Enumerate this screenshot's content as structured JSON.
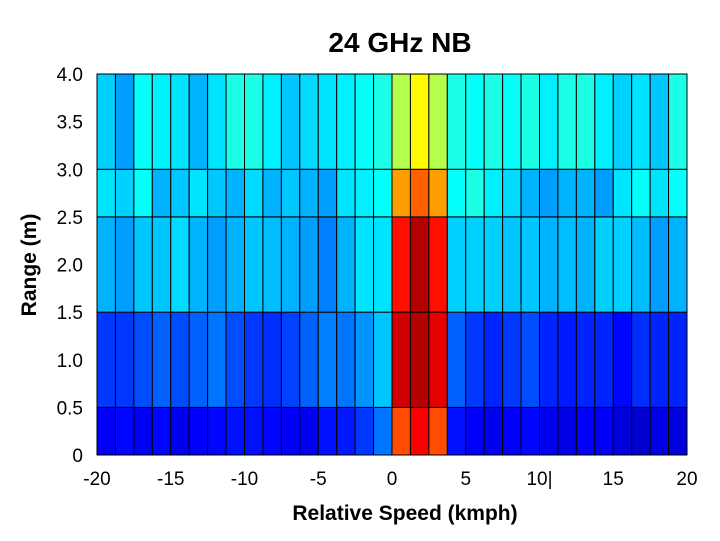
{
  "chart_data": {
    "type": "heatmap",
    "title": "24 GHz NB",
    "xlabel": "Relative Speed (kmph)",
    "ylabel": "Range (m)",
    "xlim": [
      -20,
      20
    ],
    "ylim": [
      0,
      4.0
    ],
    "x_ticks": [
      -20,
      -15,
      -10,
      -5,
      0,
      5,
      10,
      15,
      20
    ],
    "x_tick_labels": [
      "-20",
      "-15",
      "-10",
      "-5",
      "0",
      "5",
      "10|",
      "15",
      "20"
    ],
    "y_ticks": [
      0,
      0.5,
      1.0,
      1.5,
      2.0,
      2.5,
      3.0,
      3.5,
      4.0
    ],
    "y_tick_labels": [
      "0",
      "0.5",
      "1.0",
      "1.5",
      "2.0",
      "2.5",
      "3.0",
      "3.5",
      "4.0"
    ],
    "x_edges": [
      -20,
      -18.75,
      -17.5,
      -16.25,
      -15,
      -13.75,
      -12.5,
      -11.25,
      -10,
      -8.75,
      -7.5,
      -6.25,
      -5,
      -3.75,
      -2.5,
      -1.25,
      0,
      1.25,
      2.5,
      3.75,
      5,
      6.25,
      7.5,
      8.75,
      10,
      11.25,
      12.5,
      13.75,
      15,
      16.25,
      17.5,
      18.75,
      20
    ],
    "y_edges": [
      0,
      0.5,
      1.0,
      1.5,
      2.0,
      2.5,
      3.0,
      3.5,
      4.0
    ],
    "y_bands": [
      [
        0,
        0.5
      ],
      [
        0.5,
        1.5
      ],
      [
        1.5,
        2.5
      ],
      [
        2.5,
        3.0
      ],
      [
        3.0,
        4.0
      ]
    ],
    "z_range": [
      0,
      1
    ],
    "values": [
      [
        0.12,
        0.13,
        0.12,
        0.13,
        0.11,
        0.12,
        0.13,
        0.14,
        0.14,
        0.13,
        0.12,
        0.11,
        0.14,
        0.15,
        0.18,
        0.24,
        0.8,
        0.88,
        0.8,
        0.14,
        0.12,
        0.11,
        0.12,
        0.13,
        0.11,
        0.1,
        0.12,
        0.12,
        0.09,
        0.08,
        0.1,
        0.09
      ],
      [
        0.18,
        0.18,
        0.2,
        0.22,
        0.2,
        0.22,
        0.24,
        0.2,
        0.18,
        0.17,
        0.19,
        0.22,
        0.25,
        0.24,
        0.27,
        0.32,
        0.92,
        0.95,
        0.9,
        0.22,
        0.18,
        0.16,
        0.18,
        0.2,
        0.16,
        0.15,
        0.16,
        0.16,
        0.13,
        0.17,
        0.16,
        0.16
      ],
      [
        0.3,
        0.28,
        0.32,
        0.32,
        0.34,
        0.3,
        0.28,
        0.3,
        0.32,
        0.31,
        0.3,
        0.28,
        0.25,
        0.3,
        0.35,
        0.35,
        0.86,
        0.95,
        0.86,
        0.33,
        0.33,
        0.33,
        0.32,
        0.32,
        0.3,
        0.31,
        0.3,
        0.33,
        0.33,
        0.31,
        0.28,
        0.3
      ],
      [
        0.35,
        0.33,
        0.38,
        0.3,
        0.32,
        0.35,
        0.32,
        0.3,
        0.34,
        0.3,
        0.32,
        0.3,
        0.28,
        0.35,
        0.36,
        0.38,
        0.72,
        0.78,
        0.72,
        0.38,
        0.4,
        0.36,
        0.34,
        0.3,
        0.28,
        0.3,
        0.3,
        0.28,
        0.35,
        0.38,
        0.35,
        0.38
      ],
      [
        0.33,
        0.28,
        0.38,
        0.36,
        0.35,
        0.3,
        0.35,
        0.4,
        0.4,
        0.36,
        0.32,
        0.34,
        0.35,
        0.36,
        0.38,
        0.4,
        0.55,
        0.63,
        0.55,
        0.4,
        0.38,
        0.4,
        0.38,
        0.4,
        0.36,
        0.4,
        0.4,
        0.36,
        0.33,
        0.35,
        0.32,
        0.4
      ]
    ]
  }
}
